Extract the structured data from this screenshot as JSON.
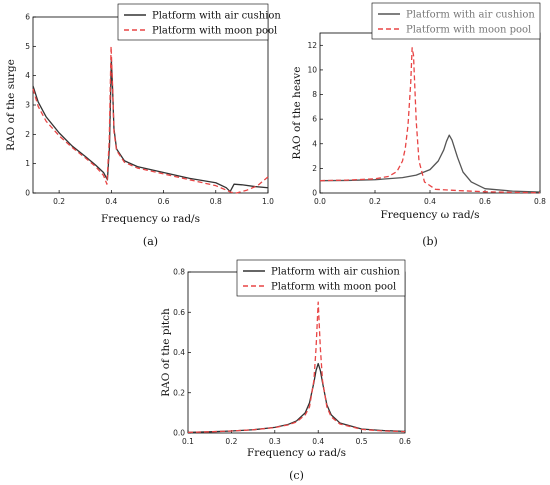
{
  "chart_data": [
    {
      "type": "line",
      "panel_label": "(a)",
      "xlabel": "Frequency ω  rad/s",
      "ylabel": "RAO of the surge",
      "xlim": [
        0.1,
        1.0
      ],
      "ylim": [
        0,
        6
      ],
      "xticks": [
        "0.2",
        "0.4",
        "0.6",
        "0.8",
        "1.0"
      ],
      "yticks": [
        "0",
        "1",
        "2",
        "3",
        "4",
        "5",
        "6"
      ],
      "legend_position": "top-right",
      "series": [
        {
          "name": "Platform with air cushion",
          "color": "#333333",
          "dash": "solid",
          "x": [
            0.1,
            0.12,
            0.15,
            0.2,
            0.25,
            0.3,
            0.34,
            0.37,
            0.385,
            0.393,
            0.4,
            0.405,
            0.41,
            0.42,
            0.45,
            0.5,
            0.6,
            0.7,
            0.8,
            0.84,
            0.855,
            0.87,
            0.9,
            0.95,
            1.0
          ],
          "y": [
            3.65,
            3.1,
            2.6,
            2.05,
            1.6,
            1.25,
            0.95,
            0.7,
            0.45,
            1.6,
            4.55,
            3.5,
            2.2,
            1.5,
            1.1,
            0.9,
            0.7,
            0.5,
            0.35,
            0.18,
            0.05,
            0.3,
            0.28,
            0.22,
            0.18
          ]
        },
        {
          "name": "Platform with moon pool",
          "color": "#e84545",
          "dash": "dashed",
          "x": [
            0.1,
            0.12,
            0.15,
            0.2,
            0.25,
            0.3,
            0.34,
            0.37,
            0.383,
            0.392,
            0.399,
            0.405,
            0.41,
            0.42,
            0.45,
            0.5,
            0.6,
            0.7,
            0.8,
            0.84,
            0.86,
            0.88,
            0.92,
            0.96,
            1.0
          ],
          "y": [
            3.55,
            2.95,
            2.45,
            1.95,
            1.55,
            1.2,
            0.9,
            0.6,
            0.3,
            1.8,
            5.0,
            3.6,
            2.1,
            1.45,
            1.05,
            0.85,
            0.65,
            0.45,
            0.25,
            0.1,
            0.02,
            0.0,
            0.1,
            0.25,
            0.55
          ]
        }
      ]
    },
    {
      "type": "line",
      "panel_label": "(b)",
      "xlabel": "Frequency ω    rad/s",
      "ylabel": "RAO of the heave",
      "xlim": [
        0.0,
        0.8
      ],
      "ylim": [
        0,
        13
      ],
      "xticks": [
        "0.0",
        "0.2",
        "0.4",
        "0.6",
        "0.8"
      ],
      "yticks": [
        "0",
        "2",
        "4",
        "6",
        "8",
        "10",
        "12"
      ],
      "legend_position": "top-right",
      "series": [
        {
          "name": "Platform with air cushion",
          "color": "#555555",
          "dash": "solid",
          "x": [
            0.0,
            0.1,
            0.2,
            0.3,
            0.35,
            0.4,
            0.43,
            0.45,
            0.46,
            0.47,
            0.48,
            0.5,
            0.52,
            0.55,
            0.6,
            0.7,
            0.8
          ],
          "y": [
            1.0,
            1.02,
            1.08,
            1.25,
            1.45,
            1.9,
            2.6,
            3.5,
            4.2,
            4.7,
            4.3,
            2.9,
            1.7,
            0.9,
            0.35,
            0.15,
            0.08
          ]
        },
        {
          "name": "Platform with moon pool",
          "color": "#e84545",
          "dash": "dashed",
          "x": [
            0.0,
            0.1,
            0.2,
            0.25,
            0.28,
            0.3,
            0.31,
            0.32,
            0.33,
            0.335,
            0.34,
            0.345,
            0.35,
            0.36,
            0.38,
            0.42,
            0.5,
            0.6,
            0.7,
            0.8
          ],
          "y": [
            1.0,
            1.05,
            1.15,
            1.35,
            1.75,
            2.6,
            3.6,
            5.5,
            9.0,
            11.8,
            11.2,
            8.5,
            5.8,
            2.6,
            0.9,
            0.3,
            0.2,
            0.1,
            0.05,
            0.02
          ]
        }
      ]
    },
    {
      "type": "line",
      "panel_label": "(c)",
      "xlabel": "Frequency ω rad/s",
      "ylabel": "RAO of the pitch",
      "xlim": [
        0.1,
        0.6
      ],
      "ylim": [
        0,
        0.8
      ],
      "xticks": [
        "0.1",
        "0.2",
        "0.3",
        "0.4",
        "0.5",
        "0.6"
      ],
      "yticks": [
        "0.0",
        "0.2",
        "0.4",
        "0.6",
        "0.8"
      ],
      "legend_position": "top-right",
      "series": [
        {
          "name": "Platform with air cushion",
          "color": "#333333",
          "dash": "solid",
          "x": [
            0.1,
            0.15,
            0.2,
            0.25,
            0.3,
            0.33,
            0.35,
            0.37,
            0.38,
            0.39,
            0.395,
            0.4,
            0.405,
            0.41,
            0.42,
            0.43,
            0.45,
            0.5,
            0.55,
            0.6
          ],
          "y": [
            0.003,
            0.006,
            0.01,
            0.016,
            0.028,
            0.042,
            0.06,
            0.1,
            0.15,
            0.25,
            0.31,
            0.345,
            0.31,
            0.25,
            0.14,
            0.09,
            0.05,
            0.02,
            0.012,
            0.008
          ]
        },
        {
          "name": "Platform with moon pool",
          "color": "#e84545",
          "dash": "dashed",
          "x": [
            0.1,
            0.15,
            0.2,
            0.25,
            0.3,
            0.33,
            0.35,
            0.37,
            0.38,
            0.39,
            0.395,
            0.4,
            0.405,
            0.41,
            0.42,
            0.43,
            0.45,
            0.5,
            0.55,
            0.6
          ],
          "y": [
            0.003,
            0.006,
            0.01,
            0.016,
            0.027,
            0.04,
            0.055,
            0.09,
            0.13,
            0.26,
            0.42,
            0.65,
            0.42,
            0.26,
            0.13,
            0.08,
            0.045,
            0.018,
            0.01,
            0.007
          ]
        }
      ]
    }
  ]
}
